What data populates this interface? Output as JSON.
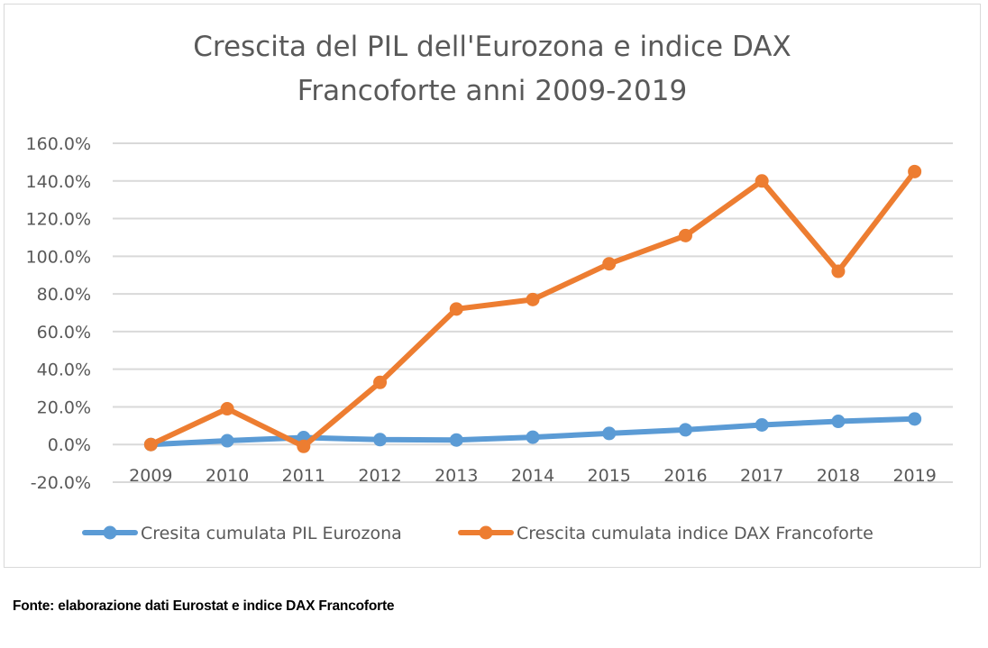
{
  "chart_data": {
    "type": "line",
    "title_lines": [
      "Crescita del PIL dell'Eurozona e indice DAX",
      "Francoforte anni 2009-2019"
    ],
    "categories": [
      "2009",
      "2010",
      "2011",
      "2012",
      "2013",
      "2014",
      "2015",
      "2016",
      "2017",
      "2018",
      "2019"
    ],
    "y_ticks": [
      "160.0%",
      "140.0%",
      "120.0%",
      "100.0%",
      "80.0%",
      "60.0%",
      "40.0%",
      "20.0%",
      "0.0%",
      "-20.0%"
    ],
    "ylim": [
      -20,
      160
    ],
    "ytick_step": 20,
    "grid": true,
    "legend_position": "bottom",
    "series": [
      {
        "name": "Cresita cumulata PIL Eurozona",
        "color": "#5b9bd5",
        "values": [
          0.0,
          2.0,
          3.7,
          2.6,
          2.4,
          3.9,
          5.9,
          7.8,
          10.4,
          12.3,
          13.6
        ]
      },
      {
        "name": "Crescita cumulata indice DAX Francoforte",
        "color": "#ed7d31",
        "values": [
          0.0,
          19.0,
          -1.0,
          33.0,
          72.0,
          77.0,
          96.0,
          111.0,
          140.0,
          92.0,
          145.0
        ]
      }
    ]
  },
  "source_note": "Fonte: elaborazione dati Eurostat e indice DAX Francoforte"
}
